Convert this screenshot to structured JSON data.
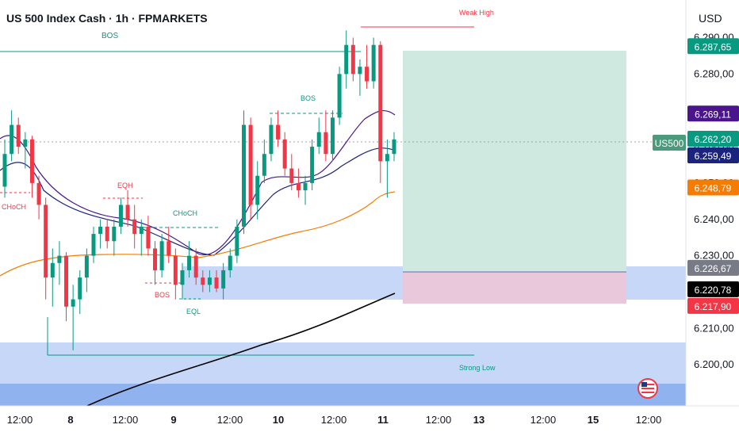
{
  "header": {
    "title": "US 500 Index Cash · 1h · FPMARKETS",
    "currency": "USD"
  },
  "colors": {
    "up": "#089981",
    "down": "#f23645",
    "ema_fast": "#1a237e",
    "ema_mid": "#4a148c",
    "ema_slow": "#f57c00",
    "ema_long": "#000000",
    "zone_blue": "#c6d7f7",
    "zone_blue_dark": "#90b3f0",
    "target_zone": "#cfe9e0",
    "stop_zone": "#e9c8dc",
    "bos_line": "#089981",
    "weak_high": "#f23645"
  },
  "chart_data": {
    "type": "candlestick",
    "y_axis": {
      "range": [
        6190,
        6296
      ],
      "ticks": [
        "6.290,00",
        "6.280,00",
        "6.270,00",
        "6.260,00",
        "6.250,00",
        "6.240,00",
        "6.230,00",
        "6.220,00",
        "6.210,00",
        "6.200,00"
      ],
      "tick_values": [
        6290,
        6280,
        6270,
        6260,
        6250,
        6240,
        6230,
        6220,
        6210,
        6200
      ]
    },
    "x_axis": {
      "ticks": [
        "12:00",
        "8",
        "12:00",
        "9",
        "12:00",
        "10",
        "12:00",
        "11",
        "12:00",
        "13",
        "12:00",
        "15",
        "12:00"
      ]
    },
    "price_labels": [
      {
        "text": "6.287,65",
        "value": 6287.65,
        "color": "#089981"
      },
      {
        "text": "6.269,11",
        "value": 6269.11,
        "color": "#4a148c"
      },
      {
        "text": "6.262,20",
        "value": 6262.2,
        "color": "#089981"
      },
      {
        "text": "6.259,49",
        "value": 6259.49,
        "color": "#1a237e"
      },
      {
        "text": "6.248,79",
        "value": 6248.79,
        "color": "#f57c00"
      },
      {
        "text": "6.226,67",
        "value": 6226.67,
        "color": "#787b86"
      },
      {
        "text": "6.220,78",
        "value": 6220.78,
        "color": "#000000"
      },
      {
        "text": "6.217,90",
        "value": 6217.9,
        "color": "#f23645"
      }
    ],
    "symbol_tag": "US500",
    "annotations": [
      {
        "text": "BOS",
        "color": "#089981"
      },
      {
        "text": "Weak High",
        "color": "#f23645"
      },
      {
        "text": "BOS",
        "color": "#089981"
      },
      {
        "text": "EQH",
        "color": "#f23645"
      },
      {
        "text": "CHoCH",
        "color": "#089981"
      },
      {
        "text": "CHoCH",
        "color": "#f23645"
      },
      {
        "text": "BOS",
        "color": "#f23645"
      },
      {
        "text": "EQL",
        "color": "#089981"
      },
      {
        "text": "Strong Low",
        "color": "#089981"
      }
    ],
    "candles_ohlc": [
      [
        6249,
        6262,
        6246,
        6258
      ],
      [
        6258,
        6270,
        6256,
        6266
      ],
      [
        6266,
        6268,
        6258,
        6260
      ],
      [
        6260,
        6264,
        6254,
        6262
      ],
      [
        6262,
        6263,
        6246,
        6250
      ],
      [
        6250,
        6252,
        6240,
        6244
      ],
      [
        6244,
        6246,
        6218,
        6224
      ],
      [
        6224,
        6232,
        6216,
        6228
      ],
      [
        6228,
        6234,
        6222,
        6230
      ],
      [
        6230,
        6231,
        6212,
        6216
      ],
      [
        6216,
        6222,
        6204,
        6218
      ],
      [
        6218,
        6226,
        6214,
        6224
      ],
      [
        6224,
        6232,
        6220,
        6230
      ],
      [
        6230,
        6238,
        6228,
        6236
      ],
      [
        6236,
        6240,
        6232,
        6238
      ],
      [
        6238,
        6240,
        6232,
        6234
      ],
      [
        6234,
        6240,
        6230,
        6238
      ],
      [
        6238,
        6246,
        6236,
        6244
      ],
      [
        6244,
        6248,
        6238,
        6240
      ],
      [
        6240,
        6244,
        6232,
        6236
      ],
      [
        6236,
        6240,
        6230,
        6238
      ],
      [
        6238,
        6241,
        6230,
        6232
      ],
      [
        6232,
        6234,
        6222,
        6226
      ],
      [
        6226,
        6236,
        6224,
        6234
      ],
      [
        6234,
        6238,
        6228,
        6230
      ],
      [
        6230,
        6232,
        6218,
        6222
      ],
      [
        6222,
        6228,
        6218,
        6226
      ],
      [
        6226,
        6234,
        6224,
        6230
      ],
      [
        6230,
        6232,
        6222,
        6224
      ],
      [
        6224,
        6226,
        6220,
        6222
      ],
      [
        6222,
        6226,
        6220,
        6224
      ],
      [
        6224,
        6226,
        6220,
        6221
      ],
      [
        6221,
        6228,
        6218,
        6226
      ],
      [
        6226,
        6232,
        6224,
        6230
      ],
      [
        6230,
        6240,
        6228,
        6238
      ],
      [
        6238,
        6270,
        6236,
        6266
      ],
      [
        6266,
        6268,
        6240,
        6244
      ],
      [
        6244,
        6256,
        6240,
        6252
      ],
      [
        6252,
        6262,
        6250,
        6258
      ],
      [
        6258,
        6268,
        6256,
        6266
      ],
      [
        6266,
        6270,
        6260,
        6262
      ],
      [
        6262,
        6264,
        6252,
        6254
      ],
      [
        6254,
        6258,
        6248,
        6250
      ],
      [
        6250,
        6254,
        6246,
        6248
      ],
      [
        6248,
        6252,
        6244,
        6250
      ],
      [
        6250,
        6262,
        6248,
        6260
      ],
      [
        6260,
        6268,
        6258,
        6264
      ],
      [
        6264,
        6270,
        6256,
        6258
      ],
      [
        6258,
        6270,
        6256,
        6268
      ],
      [
        6268,
        6282,
        6266,
        6280
      ],
      [
        6280,
        6292,
        6276,
        6288
      ],
      [
        6288,
        6290,
        6278,
        6280
      ],
      [
        6280,
        6284,
        6274,
        6282
      ],
      [
        6282,
        6288,
        6276,
        6278
      ],
      [
        6278,
        6290,
        6276,
        6288
      ],
      [
        6288,
        6289,
        6250,
        6256
      ],
      [
        6256,
        6262,
        6246,
        6258
      ],
      [
        6258,
        6264,
        6256,
        6262
      ]
    ]
  }
}
